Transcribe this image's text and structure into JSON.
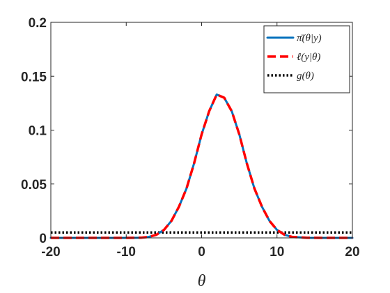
{
  "chart_data": {
    "type": "line",
    "xlabel": "θ",
    "ylabel": "",
    "xlim": [
      -20,
      20
    ],
    "ylim": [
      0,
      0.2
    ],
    "grid": false,
    "legend_position": "top-right",
    "x_ticks": [
      "-20",
      "-10",
      "0",
      "10",
      "20"
    ],
    "y_ticks": [
      "0",
      "0.05",
      "0.1",
      "0.15",
      "0.2"
    ],
    "x": [
      -20,
      -18,
      -16,
      -14,
      -12,
      -10,
      -8,
      -7,
      -6,
      -5,
      -4,
      -3,
      -2,
      -1,
      0,
      1,
      2,
      3,
      4,
      5,
      6,
      7,
      8,
      9,
      10,
      11,
      12,
      14,
      16,
      18,
      20
    ],
    "series": [
      {
        "name": "π̄(θ|y)",
        "color": "#0072BD",
        "style": "solid",
        "values": [
          0.0,
          0.0,
          0.0,
          0.0,
          0.0,
          0.0,
          0.0002,
          0.0009,
          0.0029,
          0.0074,
          0.0158,
          0.029,
          0.0459,
          0.0691,
          0.096,
          0.1175,
          0.133,
          0.13,
          0.1175,
          0.096,
          0.0691,
          0.0459,
          0.029,
          0.0158,
          0.0074,
          0.0029,
          0.0009,
          0.0001,
          0.0,
          0.0,
          0.0
        ]
      },
      {
        "name": "ℓ(y|θ)",
        "color": "#FF0000",
        "style": "dashed",
        "values": [
          0.0,
          0.0,
          0.0,
          0.0,
          0.0,
          0.0,
          0.0002,
          0.0009,
          0.0029,
          0.0074,
          0.0158,
          0.029,
          0.0459,
          0.0691,
          0.096,
          0.1175,
          0.133,
          0.13,
          0.1175,
          0.096,
          0.0691,
          0.0459,
          0.029,
          0.0158,
          0.0074,
          0.0029,
          0.0009,
          0.0001,
          0.0,
          0.0,
          0.0
        ]
      },
      {
        "name": "g(θ)",
        "color": "#000000",
        "style": "dotted",
        "values": [
          0.005,
          0.005,
          0.005,
          0.005,
          0.005,
          0.005,
          0.005,
          0.005,
          0.005,
          0.005,
          0.005,
          0.005,
          0.005,
          0.005,
          0.005,
          0.005,
          0.005,
          0.005,
          0.005,
          0.005,
          0.005,
          0.005,
          0.005,
          0.005,
          0.005,
          0.005,
          0.005,
          0.005,
          0.005,
          0.005,
          0.005
        ]
      }
    ]
  }
}
